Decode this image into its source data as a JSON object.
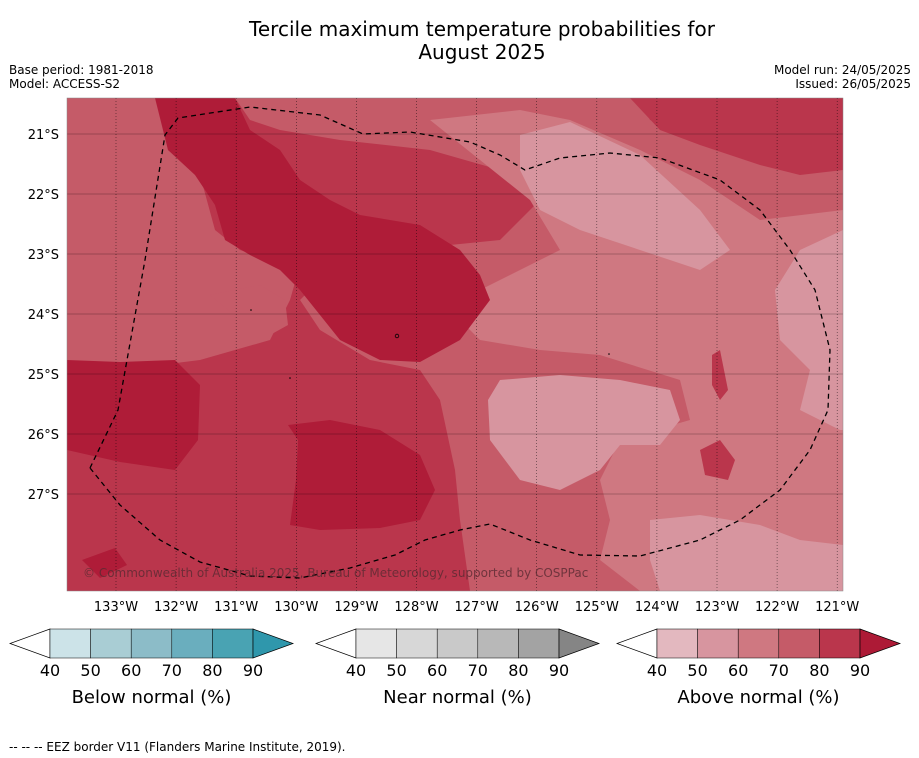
{
  "title_line1": "Tercile maximum temperature probabilities for",
  "title_line2": "August 2025",
  "base_period": "Base period: 1981-2018",
  "model": "Model: ACCESS-S2",
  "model_run": "Model run: 24/05/2025",
  "issued": "Issued: 26/05/2025",
  "copyright": "© Commonwealth of Australia 2025, Bureau of Meteorology, supported by COSPPac",
  "footer_note": "--  --  -- EEZ border V11 (Flanders Marine Institute, 2019).",
  "map": {
    "lon_labels": [
      "133°W",
      "132°W",
      "131°W",
      "130°W",
      "129°W",
      "128°W",
      "127°W",
      "126°W",
      "125°W",
      "124°W",
      "123°W",
      "122°W",
      "121°W"
    ],
    "lat_labels": [
      "21°S",
      "22°S",
      "23°S",
      "24°S",
      "25°S",
      "26°S",
      "27°S"
    ]
  },
  "colorbars": [
    {
      "label": "Below normal (%)",
      "ticks": [
        "40",
        "50",
        "60",
        "70",
        "80",
        "90"
      ],
      "colors": [
        "#ffffff",
        "#cce3e8",
        "#a9cdd4",
        "#8cbcc8",
        "#6aaebe",
        "#49a3b3",
        "#2f97ac"
      ]
    },
    {
      "label": "Near normal (%)",
      "ticks": [
        "40",
        "50",
        "60",
        "70",
        "80",
        "90"
      ],
      "colors": [
        "#ffffff",
        "#e6e6e6",
        "#d7d7d7",
        "#c9c9c9",
        "#b8b8b8",
        "#a3a3a3",
        "#858585"
      ]
    },
    {
      "label": "Above normal (%)",
      "ticks": [
        "40",
        "50",
        "60",
        "70",
        "80",
        "90"
      ],
      "colors": [
        "#ffffff",
        "#e3b8bf",
        "#d7959f",
        "#cf7881",
        "#c55b68",
        "#ba364c",
        "#ad1a36"
      ]
    }
  ],
  "fill_colors": {
    "level_60": "#d7959f",
    "level_70": "#cf7881",
    "level_80": "#c55b68",
    "level_90": "#ba364c",
    "level_max": "#af1c38"
  }
}
